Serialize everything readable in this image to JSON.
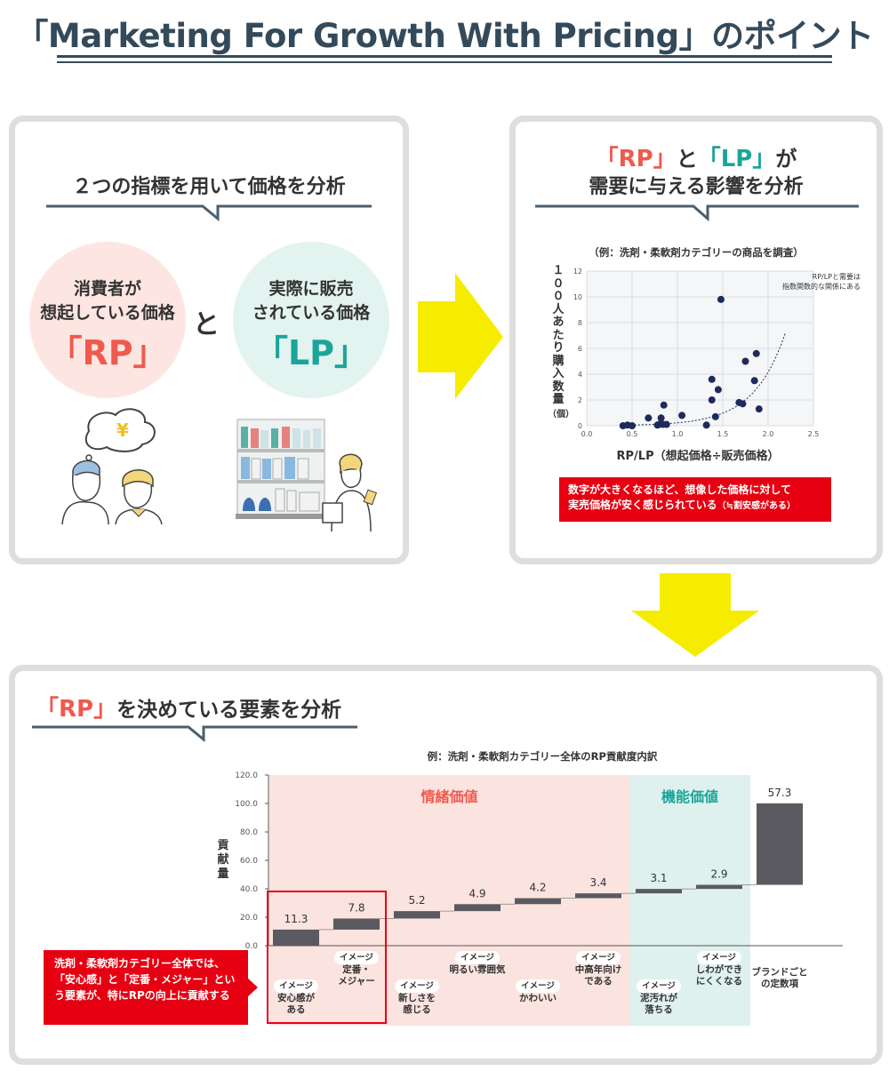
{
  "page": {
    "title": "「Marketing For Growth With Pricing」のポイント"
  },
  "panel1": {
    "heading": "２つの指標を用いて価格を分析",
    "left_line1": "消費者が",
    "left_line2": "想起している価格",
    "left_tag": "「RP」",
    "connector": "と",
    "right_line1": "実際に販売",
    "right_line2": "されている価格",
    "right_tag": "「LP」",
    "yen": "¥"
  },
  "panel2": {
    "head_rp": "「RP」",
    "head_to": "と",
    "head_lp": "「LP」",
    "head_ga": "が",
    "head_line2": "需要に与える影響を分析",
    "example": "（例：洗剤・柔軟剤カテゴリーの商品を調査）",
    "ylabel_chars": [
      "１",
      "０",
      "０",
      "人",
      "あ",
      "た",
      "り",
      "購",
      "入",
      "数",
      "量",
      "（個）"
    ],
    "note_line1": "数字が大きくなるほど、想像した価格に対して",
    "note_line2": "実売価格が安く感じられている",
    "note_small": "（≒割安感がある）",
    "curve_note_1": "RP/LPと需要は",
    "curve_note_2": "指数関数的な関係にある",
    "chart_data": {
      "type": "scatter",
      "xlabel": "RP/LP（想起価格÷販売価格）",
      "ylabel": "１００人あたり購入数量（個）",
      "xlim": [
        0.0,
        2.5
      ],
      "ylim": [
        0,
        12
      ],
      "x_ticks": [
        "0.0",
        "0.5",
        "1.0",
        "1.5",
        "2.0",
        "2.5"
      ],
      "y_ticks": [
        "0",
        "2",
        "4",
        "6",
        "8",
        "10",
        "12"
      ],
      "grid": true,
      "trend": "exponential",
      "points": [
        [
          0.4,
          0.0
        ],
        [
          0.45,
          0.05
        ],
        [
          0.5,
          0.0
        ],
        [
          0.68,
          0.6
        ],
        [
          0.78,
          0.05
        ],
        [
          0.8,
          0.1
        ],
        [
          0.82,
          0.6
        ],
        [
          0.84,
          0.1
        ],
        [
          0.85,
          1.6
        ],
        [
          0.88,
          0.1
        ],
        [
          1.05,
          0.8
        ],
        [
          1.32,
          0.05
        ],
        [
          1.38,
          2.0
        ],
        [
          1.38,
          3.6
        ],
        [
          1.42,
          0.7
        ],
        [
          1.45,
          2.8
        ],
        [
          1.48,
          9.8
        ],
        [
          1.68,
          1.8
        ],
        [
          1.72,
          1.7
        ],
        [
          1.75,
          5.0
        ],
        [
          1.85,
          3.5
        ],
        [
          1.87,
          5.6
        ],
        [
          1.9,
          1.3
        ]
      ]
    }
  },
  "panel3": {
    "heading_tag": "「RP」",
    "heading_rest": "を決めている要素を分析",
    "example": "例：洗剤・柔軟剤カテゴリー全体のRP貢献度内訳",
    "ylabel_chars": [
      "貢",
      "献",
      "量"
    ],
    "band_emotional": "情緒価値",
    "band_functional": "機能価値",
    "callout": "洗剤・柔軟剤カテゴリー全体では、「安心感」と「定番・メジャー」という要素が、特にRPの向上に貢献する",
    "pill_label": "イメージ",
    "chart_data": {
      "type": "bar",
      "subtype": "waterfall",
      "title": "例：洗剤・柔軟剤カテゴリー全体のRP貢献度内訳",
      "ylabel": "貢献量",
      "ylim": [
        0,
        120
      ],
      "y_ticks": [
        "0.0",
        "20.0",
        "40.0",
        "60.0",
        "80.0",
        "100.0",
        "120.0"
      ],
      "categories": [
        "安心感がある",
        "定番・メジャー",
        "新しさを感じる",
        "明るい雰囲気",
        "かわいい",
        "中高年向けである",
        "泥汚れが落ちる",
        "しわができにくくなる",
        "ブランドごとの定数項"
      ],
      "values": [
        11.3,
        7.8,
        5.2,
        4.9,
        4.2,
        3.4,
        3.1,
        2.9,
        57.3
      ],
      "value_labels": [
        "11.3",
        "7.8",
        "5.2",
        "4.9",
        "4.2",
        "3.4",
        "3.1",
        "2.9",
        "57.3"
      ],
      "groups": [
        "情緒価値",
        "情緒価値",
        "情緒価値",
        "情緒価値",
        "情緒価値",
        "情緒価値",
        "機能価値",
        "機能価値",
        ""
      ]
    },
    "labels": [
      {
        "pill": true,
        "lines": [
          "安心感が",
          "ある"
        ]
      },
      {
        "pill": true,
        "lines": [
          "定番・",
          "メジャー"
        ]
      },
      {
        "pill": true,
        "lines": [
          "新しさを",
          "感じる"
        ]
      },
      {
        "pill": true,
        "lines": [
          "明るい雰囲気"
        ]
      },
      {
        "pill": true,
        "lines": [
          "かわいい"
        ]
      },
      {
        "pill": true,
        "lines": [
          "中高年向け",
          "である"
        ]
      },
      {
        "pill": true,
        "lines": [
          "泥汚れが",
          "落ちる"
        ]
      },
      {
        "pill": true,
        "lines": [
          "しわができ",
          "にくくなる"
        ]
      },
      {
        "pill": false,
        "lines": [
          "ブランドごと",
          "の定数項"
        ]
      }
    ]
  },
  "colors": {
    "navy": "#344a5a",
    "red": "#ef5a4e",
    "teal": "#1aa59a",
    "arrow_yellow": "#f5ec00",
    "alert_red": "#e60012",
    "dot": "#1e2a5a",
    "bar": "#5a5a60"
  }
}
